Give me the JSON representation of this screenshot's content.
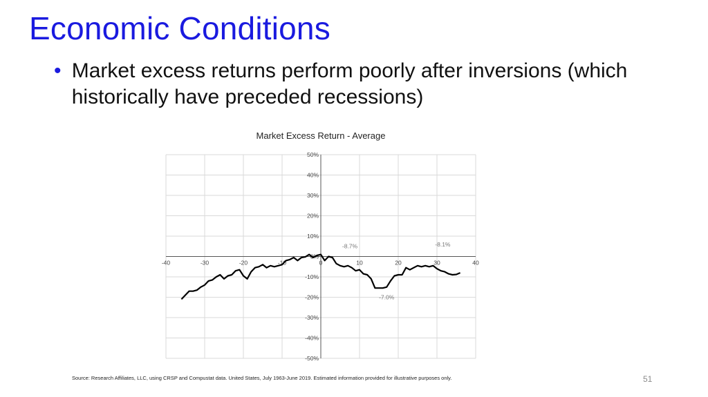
{
  "slide": {
    "title": "Economic Conditions",
    "bullet_symbol": "•",
    "bullet": "Market excess returns perform poorly after inversions (which historically have preceded recessions)",
    "footnote": "Source: Research Affiliates, LLC, using CRSP and Compustat data. United States, July 1963-June 2019. Estimated information provided for illustrative purposes only.",
    "page_number": "51",
    "title_color": "#1a1adf"
  },
  "chart_data": {
    "type": "line",
    "title": "Market Excess Return - Average",
    "xlabel": "",
    "ylabel": "",
    "xlim": [
      -40,
      40
    ],
    "ylim": [
      -0.5,
      0.5
    ],
    "x_ticks": [
      -40,
      -30,
      -20,
      -10,
      0,
      10,
      20,
      30,
      40
    ],
    "x_tick_labels": [
      "-40",
      "-30",
      "-20",
      "-10",
      "0",
      "10",
      "20",
      "30",
      "40"
    ],
    "y_ticks": [
      0.5,
      0.4,
      0.3,
      0.2,
      0.1,
      0.0,
      -0.1,
      -0.2,
      -0.3,
      -0.4,
      -0.5
    ],
    "y_tick_labels": [
      "50%",
      "40%",
      "30%",
      "20%",
      "10%",
      "0%",
      "-10%",
      "-20%",
      "-30%",
      "-40%",
      "-50%"
    ],
    "grid": true,
    "line_color": "#000000",
    "series": [
      {
        "x": [
          -36,
          -35,
          -34,
          -33,
          -32,
          -31,
          -30,
          -29,
          -28,
          -27,
          -26,
          -25,
          -24,
          -23,
          -22,
          -21,
          -20,
          -19,
          -18,
          -17,
          -16,
          -15,
          -14,
          -13,
          -12,
          -11,
          -10,
          -9,
          -8,
          -7,
          -6,
          -5,
          -4,
          -3,
          -2,
          -1,
          0,
          1,
          2,
          3,
          4,
          5,
          6,
          7,
          8,
          9,
          10,
          11,
          12,
          13,
          14,
          15,
          16,
          17,
          18,
          19,
          20,
          21,
          22,
          23,
          24,
          25,
          26,
          27,
          28,
          29,
          30,
          31,
          32,
          33,
          34,
          35,
          36
        ],
        "values": [
          -0.21,
          -0.19,
          -0.17,
          -0.17,
          -0.165,
          -0.15,
          -0.14,
          -0.12,
          -0.115,
          -0.1,
          -0.09,
          -0.11,
          -0.095,
          -0.09,
          -0.07,
          -0.065,
          -0.095,
          -0.11,
          -0.075,
          -0.055,
          -0.05,
          -0.04,
          -0.055,
          -0.045,
          -0.05,
          -0.045,
          -0.04,
          -0.02,
          -0.015,
          -0.005,
          -0.02,
          -0.005,
          -0.002,
          0.01,
          -0.005,
          0.005,
          0.01,
          -0.02,
          0.0,
          -0.005,
          -0.035,
          -0.045,
          -0.05,
          -0.045,
          -0.055,
          -0.07,
          -0.065,
          -0.085,
          -0.09,
          -0.11,
          -0.155,
          -0.155,
          -0.155,
          -0.15,
          -0.12,
          -0.095,
          -0.09,
          -0.09,
          -0.055,
          -0.065,
          -0.055,
          -0.045,
          -0.05,
          -0.045,
          -0.05,
          -0.045,
          -0.06,
          -0.07,
          -0.075,
          -0.085,
          -0.09,
          -0.088,
          -0.08
        ]
      }
    ],
    "annotations": [
      {
        "text": "-8.7%",
        "x": 7.5,
        "y": 0.04
      },
      {
        "text": "-8.1%",
        "x": 31.5,
        "y": 0.05
      },
      {
        "text": "-7.0%",
        "x": 17,
        "y": -0.21
      }
    ]
  }
}
